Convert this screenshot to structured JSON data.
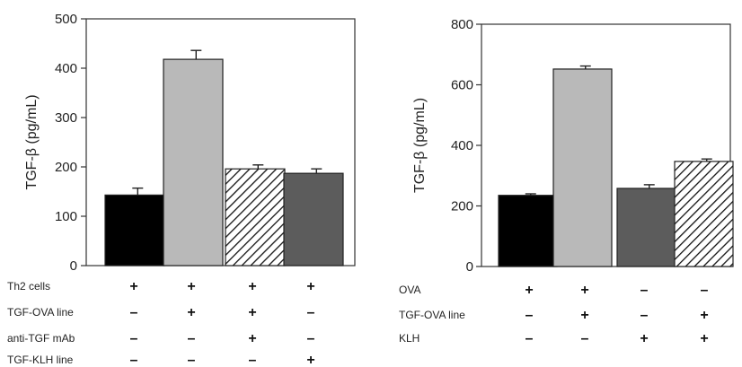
{
  "chart_data": [
    {
      "type": "bar",
      "title": "",
      "xlabel": "",
      "ylabel": "TGF-β (pg/mL)",
      "ylim": [
        0,
        500
      ],
      "yticks": [
        0,
        100,
        200,
        300,
        400,
        500
      ],
      "grid": false,
      "values": [
        143,
        418,
        196,
        187
      ],
      "errors": [
        14,
        18,
        8,
        9
      ],
      "fills": [
        "black",
        "lightgray",
        "hatched",
        "darkgray"
      ],
      "condition_rows": [
        {
          "label": "Th2 cells",
          "signs": [
            "+",
            "+",
            "+",
            "+"
          ]
        },
        {
          "label": "TGF-OVA line",
          "signs": [
            "–",
            "+",
            "+",
            "–"
          ]
        },
        {
          "label": "anti-TGF mAb",
          "signs": [
            "–",
            "–",
            "+",
            "–"
          ]
        },
        {
          "label": "TGF-KLH line",
          "signs": [
            "–",
            "–",
            "–",
            "+"
          ]
        }
      ]
    },
    {
      "type": "bar",
      "title": "",
      "xlabel": "",
      "ylabel": "TGF-β (pg/mL)",
      "ylim": [
        0,
        800
      ],
      "yticks": [
        0,
        200,
        400,
        600,
        800
      ],
      "grid": false,
      "values": [
        235,
        652,
        258,
        347
      ],
      "errors": [
        5,
        10,
        12,
        8
      ],
      "fills": [
        "black",
        "lightgray",
        "darkgray",
        "hatched"
      ],
      "condition_rows": [
        {
          "label": "OVA",
          "signs": [
            "+",
            "+",
            "–",
            "–"
          ]
        },
        {
          "label": "TGF-OVA line",
          "signs": [
            "–",
            "+",
            "–",
            "+"
          ]
        },
        {
          "label": "KLH",
          "signs": [
            "–",
            "–",
            "+",
            "+"
          ]
        }
      ]
    }
  ],
  "colors": {
    "black": "#000000",
    "lightgray": "#b9b9b9",
    "darkgray": "#5c5c5c",
    "hatch_line": "#111111"
  }
}
